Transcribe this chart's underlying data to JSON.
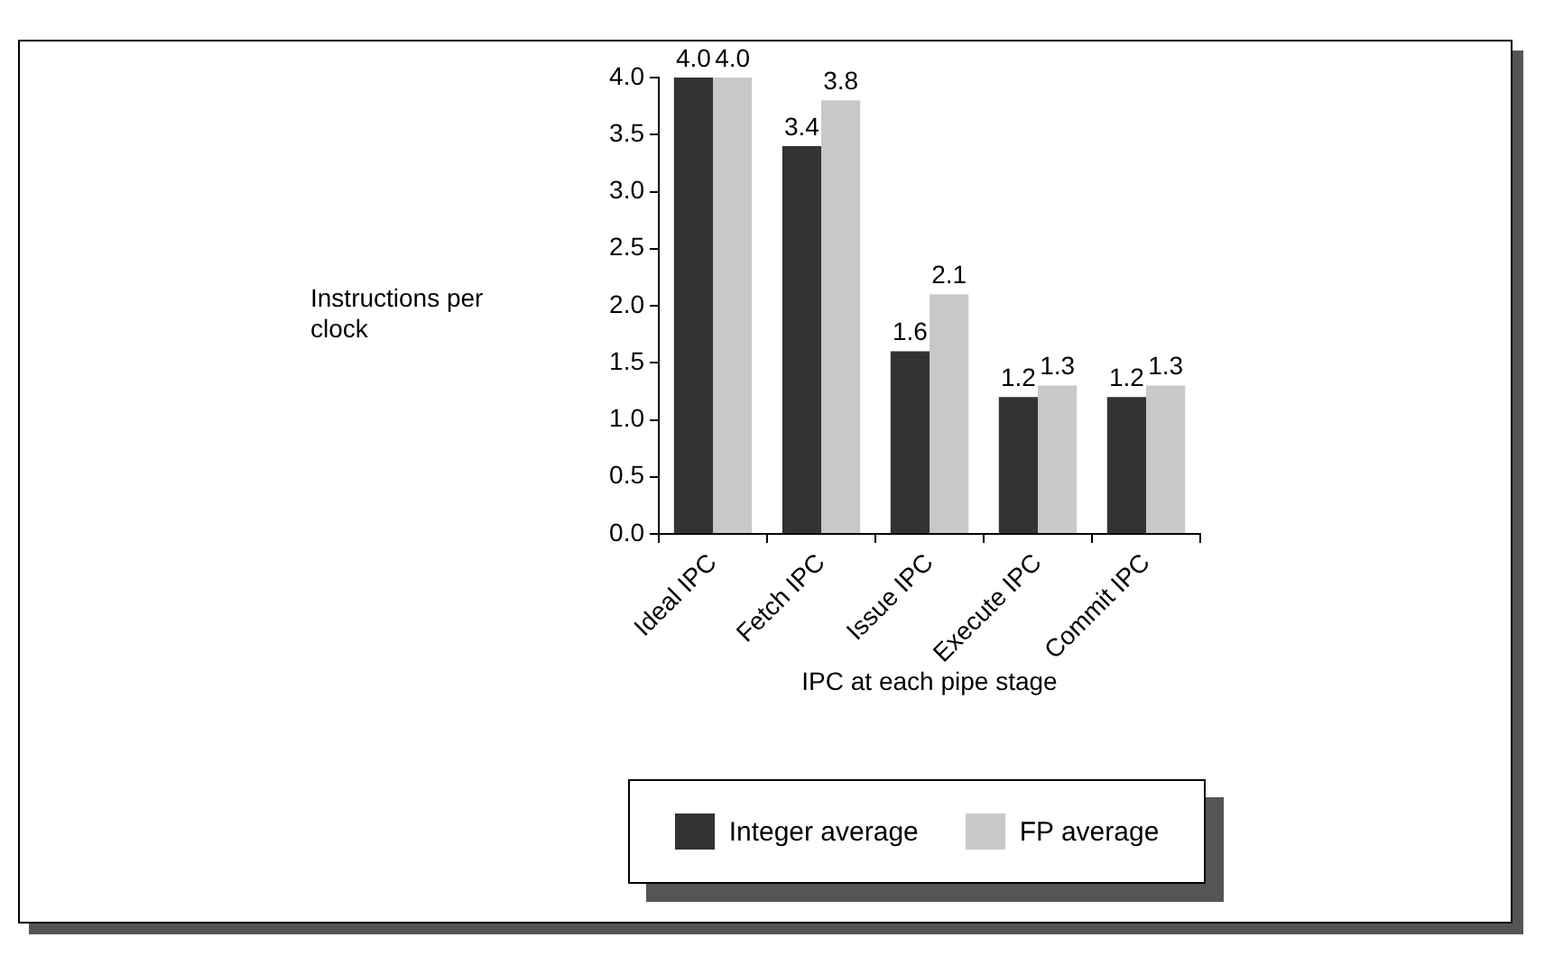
{
  "chart_data": {
    "type": "bar",
    "xlabel": "IPC at each pipe stage",
    "ylabel": "Instructions per clock",
    "categories": [
      "Ideal IPC",
      "Fetch IPC",
      "Issue IPC",
      "Execute IPC",
      "Commit IPC"
    ],
    "series": [
      {
        "name": "Integer average",
        "color": "#333333",
        "values": [
          4.0,
          3.4,
          1.6,
          1.2,
          1.2
        ],
        "value_labels": [
          "4.0",
          "3.4",
          "1.6",
          "1.2",
          "1.2"
        ]
      },
      {
        "name": "FP average",
        "color": "#c8c8c8",
        "values": [
          4.0,
          3.8,
          2.1,
          1.3,
          1.3
        ],
        "value_labels": [
          "4.0",
          "3.8",
          "2.1",
          "1.3",
          "1.3"
        ]
      }
    ],
    "ylim": [
      0,
      4
    ],
    "yticks": [
      {
        "value": 0,
        "label": "0.0"
      },
      {
        "value": 0.5,
        "label": "0.5"
      },
      {
        "value": 1,
        "label": "1.0"
      },
      {
        "value": 1.5,
        "label": "1.5"
      },
      {
        "value": 2,
        "label": "2.0"
      },
      {
        "value": 2.5,
        "label": "2.5"
      },
      {
        "value": 3,
        "label": "3.0"
      },
      {
        "value": 3.5,
        "label": "3.5"
      },
      {
        "value": 4,
        "label": "4.0"
      }
    ],
    "grid": false,
    "legend": "bottom"
  }
}
